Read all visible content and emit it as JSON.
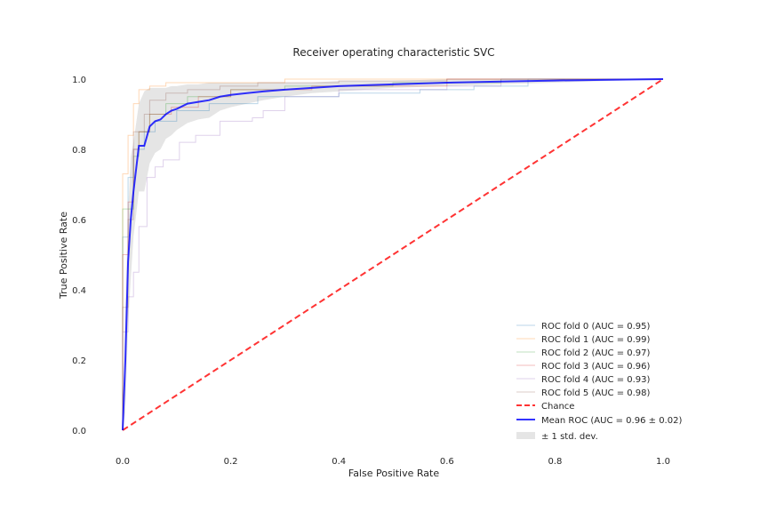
{
  "chart_data": {
    "type": "line",
    "title": "Receiver operating characteristic SVC",
    "xlabel": "False Positive Rate",
    "ylabel": "True Positive Rate",
    "xlim": [
      -0.05,
      1.05
    ],
    "ylim": [
      -0.05,
      1.05
    ],
    "xticks": [
      0.0,
      0.2,
      0.4,
      0.6,
      0.8,
      1.0
    ],
    "xtick_labels": [
      "0.0",
      "0.2",
      "0.4",
      "0.6",
      "0.8",
      "1.0"
    ],
    "yticks": [
      0.0,
      0.2,
      0.4,
      0.6,
      0.8,
      1.0
    ],
    "ytick_labels": [
      "0.0",
      "0.2",
      "0.4",
      "0.6",
      "0.8",
      "1.0"
    ],
    "grid": false,
    "legend_position": "lower-right",
    "series": [
      {
        "name": "ROC fold 0 (AUC = 0.95)",
        "color": "#1f77b4",
        "style": "step",
        "x": [
          0.0,
          0.0,
          0.01,
          0.01,
          0.02,
          0.02,
          0.04,
          0.04,
          0.06,
          0.06,
          0.1,
          0.1,
          0.16,
          0.16,
          0.25,
          0.25,
          0.4,
          0.4,
          0.55,
          0.55,
          0.65,
          0.65,
          0.75,
          0.75,
          1.0
        ],
        "y": [
          0.0,
          0.55,
          0.55,
          0.72,
          0.72,
          0.8,
          0.8,
          0.85,
          0.85,
          0.88,
          0.88,
          0.91,
          0.91,
          0.93,
          0.93,
          0.95,
          0.95,
          0.96,
          0.96,
          0.97,
          0.97,
          0.98,
          0.98,
          1.0,
          1.0
        ]
      },
      {
        "name": "ROC fold 1 (AUC = 0.99)",
        "color": "#ff7f0e",
        "style": "step",
        "x": [
          0.0,
          0.0,
          0.01,
          0.01,
          0.02,
          0.02,
          0.03,
          0.03,
          0.05,
          0.05,
          0.08,
          0.08,
          0.3,
          0.3,
          1.0
        ],
        "y": [
          0.0,
          0.73,
          0.73,
          0.84,
          0.84,
          0.93,
          0.93,
          0.97,
          0.97,
          0.98,
          0.98,
          0.99,
          0.99,
          1.0,
          1.0
        ]
      },
      {
        "name": "ROC fold 2 (AUC = 0.97)",
        "color": "#2ca02c",
        "style": "step",
        "x": [
          0.0,
          0.0,
          0.02,
          0.02,
          0.03,
          0.03,
          0.05,
          0.05,
          0.08,
          0.08,
          0.12,
          0.12,
          0.2,
          0.2,
          0.3,
          0.3,
          0.5,
          0.5,
          0.7,
          0.7,
          1.0
        ],
        "y": [
          0.0,
          0.63,
          0.63,
          0.78,
          0.78,
          0.85,
          0.85,
          0.9,
          0.9,
          0.93,
          0.93,
          0.95,
          0.95,
          0.97,
          0.97,
          0.98,
          0.98,
          0.99,
          0.99,
          1.0,
          1.0
        ]
      },
      {
        "name": "ROC fold 3 (AUC = 0.96)",
        "color": "#d62728",
        "style": "step",
        "x": [
          0.0,
          0.0,
          0.01,
          0.01,
          0.02,
          0.02,
          0.03,
          0.03,
          0.05,
          0.05,
          0.09,
          0.09,
          0.14,
          0.14,
          0.2,
          0.2,
          0.35,
          0.35,
          0.6,
          0.6,
          1.0
        ],
        "y": [
          0.0,
          0.5,
          0.5,
          0.65,
          0.65,
          0.8,
          0.8,
          0.85,
          0.85,
          0.9,
          0.9,
          0.92,
          0.92,
          0.95,
          0.95,
          0.97,
          0.97,
          0.98,
          0.98,
          1.0,
          1.0
        ]
      },
      {
        "name": "ROC fold 4 (AUC = 0.93)",
        "color": "#9467bd",
        "style": "step",
        "x": [
          0.0,
          0.0,
          0.01,
          0.01,
          0.02,
          0.02,
          0.03,
          0.03,
          0.045,
          0.045,
          0.06,
          0.06,
          0.075,
          0.075,
          0.105,
          0.105,
          0.135,
          0.135,
          0.18,
          0.18,
          0.24,
          0.24,
          0.26,
          0.26,
          0.3,
          0.3,
          0.4,
          0.4,
          0.6,
          0.6,
          0.7,
          0.7,
          1.0
        ],
        "y": [
          0.0,
          0.28,
          0.28,
          0.38,
          0.38,
          0.45,
          0.45,
          0.58,
          0.58,
          0.72,
          0.72,
          0.75,
          0.75,
          0.77,
          0.77,
          0.82,
          0.82,
          0.84,
          0.84,
          0.88,
          0.88,
          0.89,
          0.89,
          0.91,
          0.91,
          0.95,
          0.95,
          0.97,
          0.97,
          0.98,
          0.98,
          1.0,
          1.0
        ]
      },
      {
        "name": "ROC fold 5 (AUC = 0.98)",
        "color": "#8c564b",
        "style": "step",
        "x": [
          0.0,
          0.0,
          0.01,
          0.01,
          0.02,
          0.02,
          0.04,
          0.04,
          0.05,
          0.05,
          0.08,
          0.08,
          0.12,
          0.12,
          0.18,
          0.18,
          0.25,
          0.25,
          0.4,
          0.4,
          0.6,
          0.6,
          1.0
        ],
        "y": [
          0.0,
          0.35,
          0.35,
          0.6,
          0.6,
          0.85,
          0.85,
          0.9,
          0.9,
          0.94,
          0.94,
          0.96,
          0.96,
          0.97,
          0.97,
          0.98,
          0.98,
          0.99,
          0.99,
          0.995,
          0.995,
          1.0,
          1.0
        ]
      },
      {
        "name": "Chance",
        "color": "#ff0000",
        "style": "dashed",
        "x": [
          0.0,
          1.0
        ],
        "y": [
          0.0,
          1.0
        ]
      },
      {
        "name": "Mean ROC (AUC = 0.96 ± 0.02)",
        "color": "#0000ff",
        "style": "solid",
        "x": [
          0.0,
          0.005,
          0.01,
          0.015,
          0.02,
          0.03,
          0.04,
          0.05,
          0.06,
          0.07,
          0.08,
          0.09,
          0.1,
          0.12,
          0.14,
          0.16,
          0.18,
          0.2,
          0.23,
          0.26,
          0.3,
          0.35,
          0.4,
          0.5,
          0.6,
          0.7,
          0.8,
          0.9,
          1.0
        ],
        "y": [
          0.0,
          0.2,
          0.48,
          0.6,
          0.68,
          0.81,
          0.81,
          0.865,
          0.88,
          0.885,
          0.9,
          0.91,
          0.915,
          0.93,
          0.935,
          0.94,
          0.95,
          0.955,
          0.96,
          0.965,
          0.97,
          0.975,
          0.98,
          0.985,
          0.99,
          0.993,
          0.996,
          0.998,
          1.0
        ]
      }
    ],
    "std_band": {
      "name": "± 1 std. dev.",
      "color": "#a9a9a9",
      "x": [
        0.0,
        0.005,
        0.01,
        0.015,
        0.02,
        0.03,
        0.04,
        0.05,
        0.06,
        0.07,
        0.08,
        0.09,
        0.1,
        0.12,
        0.14,
        0.16,
        0.18,
        0.2,
        0.23,
        0.26,
        0.3,
        0.35,
        0.4,
        0.5,
        0.6,
        0.7,
        0.8,
        0.9,
        1.0
      ],
      "upper": [
        0.0,
        0.35,
        0.62,
        0.78,
        0.82,
        0.93,
        0.965,
        0.975,
        0.975,
        0.975,
        0.975,
        0.98,
        0.98,
        0.985,
        0.985,
        0.99,
        0.99,
        0.99,
        0.99,
        0.99,
        0.99,
        0.99,
        0.995,
        0.995,
        1.0,
        1.0,
        1.0,
        1.0,
        1.0
      ],
      "lower": [
        0.0,
        0.05,
        0.3,
        0.43,
        0.55,
        0.68,
        0.68,
        0.76,
        0.79,
        0.8,
        0.83,
        0.84,
        0.855,
        0.875,
        0.885,
        0.89,
        0.91,
        0.92,
        0.93,
        0.94,
        0.95,
        0.96,
        0.965,
        0.975,
        0.98,
        0.985,
        0.99,
        0.995,
        1.0
      ]
    }
  }
}
